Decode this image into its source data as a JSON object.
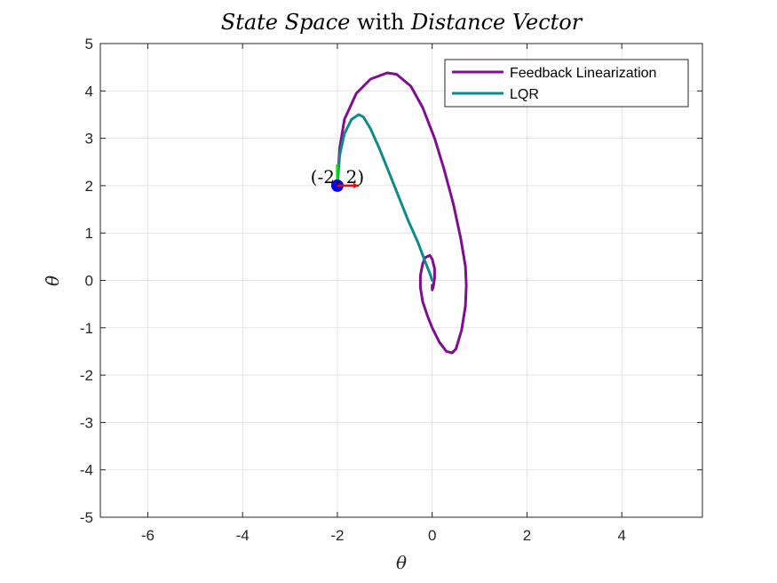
{
  "chart_data": {
    "type": "line",
    "title_parts": [
      {
        "text": "State Space",
        "italic": true
      },
      {
        "text": " with ",
        "italic": false
      },
      {
        "text": "Distance Vector",
        "italic": true
      }
    ],
    "xlabel": "θ",
    "ylabel": "θ̇",
    "xlim": [
      -7,
      5.7
    ],
    "ylim": [
      -5,
      5
    ],
    "xticks": [
      -6,
      -4,
      -2,
      0,
      2,
      4
    ],
    "yticks": [
      -5,
      -4,
      -3,
      -2,
      -1,
      0,
      1,
      2,
      3,
      4,
      5
    ],
    "grid": true,
    "legend_position": "top-right",
    "series": [
      {
        "name": "Feedback Linearization",
        "color": "#7e0f8e",
        "x": [
          -2.0,
          -1.95,
          -1.85,
          -1.6,
          -1.3,
          -0.95,
          -0.75,
          -0.45,
          -0.2,
          0.05,
          0.25,
          0.45,
          0.6,
          0.7,
          0.72,
          0.7,
          0.62,
          0.5,
          0.42,
          0.3,
          0.15,
          0.0,
          -0.1,
          -0.2,
          -0.25,
          -0.25,
          -0.2,
          -0.15,
          -0.05,
          0.0,
          0.05,
          0.05,
          0.02,
          0.0,
          0.0
        ],
        "y": [
          2.0,
          2.8,
          3.4,
          3.95,
          4.25,
          4.38,
          4.35,
          4.1,
          3.65,
          3.0,
          2.35,
          1.6,
          0.9,
          0.3,
          -0.1,
          -0.55,
          -1.05,
          -1.45,
          -1.53,
          -1.5,
          -1.3,
          -1.0,
          -0.75,
          -0.45,
          -0.15,
          0.1,
          0.35,
          0.48,
          0.53,
          0.45,
          0.25,
          0.05,
          -0.15,
          -0.2,
          -0.1
        ]
      },
      {
        "name": "LQR",
        "color": "#0e8a8a",
        "x": [
          -2.0,
          -1.95,
          -1.85,
          -1.7,
          -1.55,
          -1.45,
          -1.3,
          -1.1,
          -0.9,
          -0.7,
          -0.5,
          -0.3,
          -0.15,
          -0.05,
          0.0
        ],
        "y": [
          2.0,
          2.65,
          3.1,
          3.4,
          3.5,
          3.45,
          3.2,
          2.75,
          2.25,
          1.75,
          1.25,
          0.8,
          0.4,
          0.15,
          0.0
        ]
      }
    ],
    "annotation": {
      "label": "(-2, 2)",
      "point": [
        -2,
        2
      ],
      "marker_color": "#0000ff",
      "vector_x": {
        "dx": 0.45,
        "color": "#ff0000"
      },
      "vector_y": {
        "dy": 0.45,
        "color": "#00dd00"
      }
    }
  }
}
